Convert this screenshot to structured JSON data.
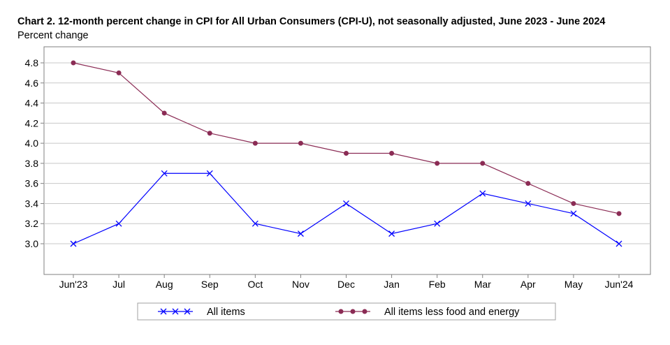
{
  "chart_data": {
    "type": "line",
    "title": "Chart 2. 12-month percent change in CPI for All Urban Consumers (CPI-U), not seasonally adjusted, June 2023 - June 2024",
    "ylabel": "Percent change",
    "xlabel": "",
    "categories": [
      "Jun'23",
      "Jul",
      "Aug",
      "Sep",
      "Oct",
      "Nov",
      "Dec",
      "Jan",
      "Feb",
      "Mar",
      "Apr",
      "May",
      "Jun'24"
    ],
    "series": [
      {
        "name": "All items",
        "color": "#0000ff",
        "marker": "x",
        "values": [
          3.0,
          3.2,
          3.7,
          3.7,
          3.2,
          3.1,
          3.4,
          3.1,
          3.2,
          3.5,
          3.4,
          3.3,
          3.0
        ]
      },
      {
        "name": "All items less food and energy",
        "color": "#8b2c55",
        "marker": "circle",
        "values": [
          4.8,
          4.7,
          4.3,
          4.1,
          4.0,
          4.0,
          3.9,
          3.9,
          3.8,
          3.8,
          3.6,
          3.4,
          3.3
        ]
      }
    ],
    "yticks": [
      "3.0",
      "3.2",
      "3.4",
      "3.6",
      "3.8",
      "4.0",
      "4.2",
      "4.4",
      "4.6",
      "4.8"
    ],
    "ylim": [
      2.7,
      5.0
    ],
    "grid": true,
    "legend_position": "bottom"
  }
}
